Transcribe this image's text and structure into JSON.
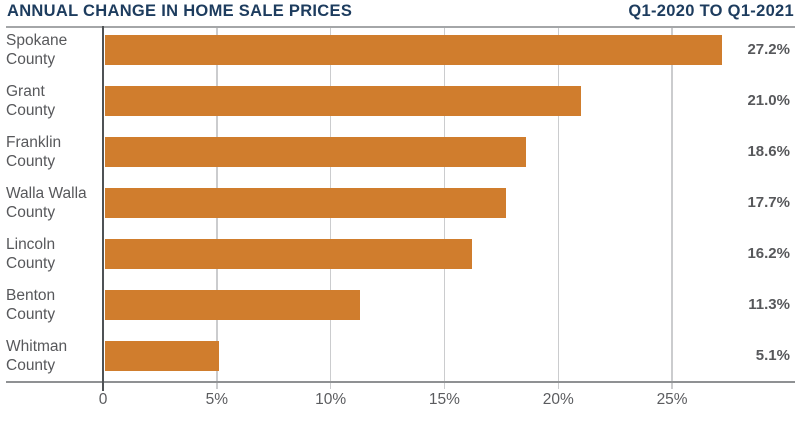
{
  "header": {
    "title_left": "ANNUAL CHANGE IN HOME SALE PRICES",
    "title_right": "Q1-2020 TO Q1-2021"
  },
  "chart_data": {
    "type": "bar",
    "orientation": "horizontal",
    "title": "ANNUAL CHANGE IN HOME SALE PRICES",
    "subtitle": "Q1-2020 TO Q1-2021",
    "categories": [
      "Spokane County",
      "Grant County",
      "Franklin County",
      "Walla Walla County",
      "Lincoln County",
      "Benton County",
      "Whitman County"
    ],
    "category_lines": [
      [
        "Spokane",
        "County"
      ],
      [
        "Grant",
        "County"
      ],
      [
        "Franklin",
        "County"
      ],
      [
        "Walla Walla",
        "County"
      ],
      [
        "Lincoln",
        "County"
      ],
      [
        "Benton",
        "County"
      ],
      [
        "Whitman",
        "County"
      ]
    ],
    "values": [
      27.2,
      21.0,
      18.6,
      17.7,
      16.2,
      11.3,
      5.1
    ],
    "value_labels": [
      "27.2%",
      "21.0%",
      "18.6%",
      "17.7%",
      "16.2%",
      "11.3%",
      "5.1%"
    ],
    "xlabel": "",
    "ylabel": "",
    "xlim": [
      0,
      30.4
    ],
    "xticks": [
      0,
      5,
      10,
      15,
      20,
      25
    ],
    "xtick_labels": [
      "0",
      "5%",
      "10%",
      "15%",
      "20%",
      "25%"
    ],
    "grid": "vertical",
    "legend": "none"
  },
  "colors": {
    "title_navy": "#1d3c5e",
    "bar_orange": "#d07d2d",
    "label_gray": "#57585b",
    "grid_gray": "#cbccce",
    "axis_gray": "#8f9193"
  }
}
